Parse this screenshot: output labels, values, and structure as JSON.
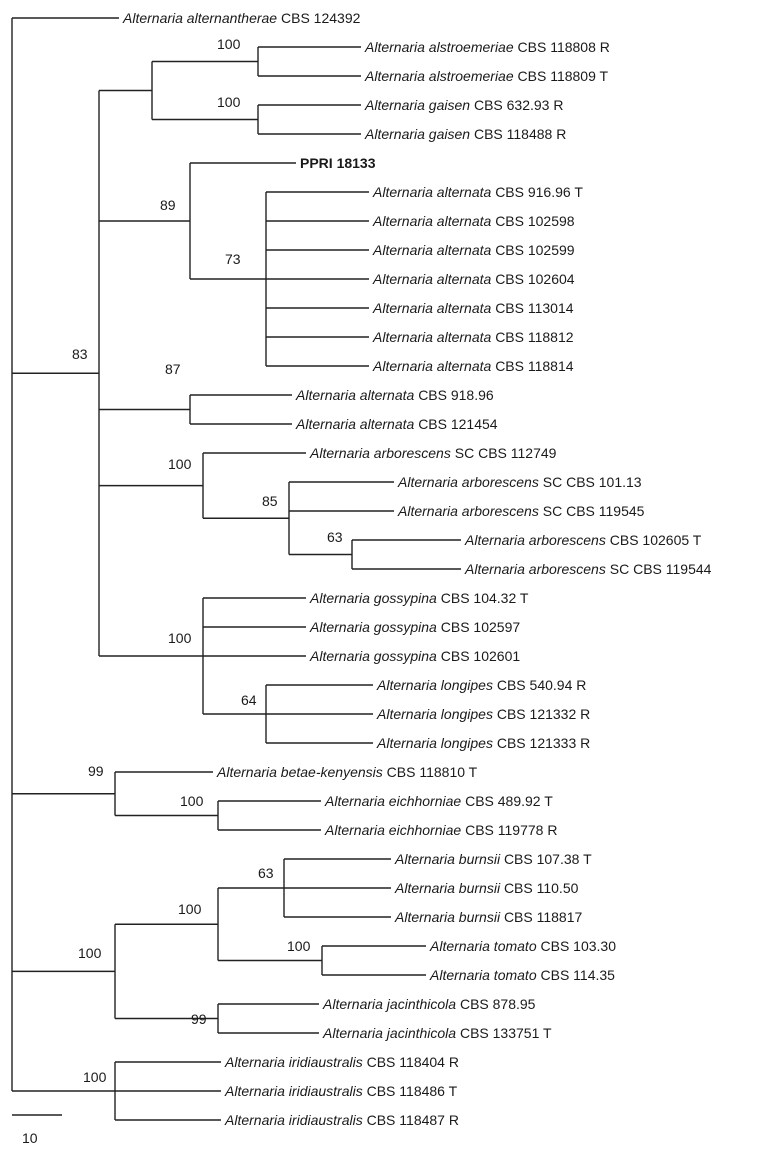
{
  "tree": {
    "genus": "Alternaria",
    "scale_label": "10",
    "taxa": [
      {
        "id": "alternantherae_124392",
        "name": "Alternaria alternantherae",
        "strain": "CBS 124392"
      },
      {
        "id": "alstroemeriae_118808",
        "name": "Alternaria alstroemeriae",
        "strain": "CBS 118808 R"
      },
      {
        "id": "alstroemeriae_118809",
        "name": "Alternaria alstroemeriae",
        "strain": "CBS 118809 T"
      },
      {
        "id": "gaisen_632_93",
        "name": "Alternaria gaisen",
        "strain": "CBS 632.93 R"
      },
      {
        "id": "gaisen_118488",
        "name": "Alternaria gaisen",
        "strain": "CBS 118488 R"
      },
      {
        "id": "ppri_18133",
        "name": "",
        "strain": "PPRI 18133",
        "bold": true
      },
      {
        "id": "alternata_916_96",
        "name": "Alternaria alternata",
        "strain": "CBS 916.96 T"
      },
      {
        "id": "alternata_102598",
        "name": "Alternaria alternata",
        "strain": "CBS 102598"
      },
      {
        "id": "alternata_102599",
        "name": "Alternaria alternata",
        "strain": "CBS 102599"
      },
      {
        "id": "alternata_102604",
        "name": "Alternaria alternata",
        "strain": "CBS 102604"
      },
      {
        "id": "alternata_113014",
        "name": "Alternaria alternata",
        "strain": "CBS 113014"
      },
      {
        "id": "alternata_118812",
        "name": "Alternaria alternata",
        "strain": "CBS 118812"
      },
      {
        "id": "alternata_118814",
        "name": "Alternaria alternata",
        "strain": "CBS 118814"
      },
      {
        "id": "alternata_918_96",
        "name": "Alternaria alternata",
        "strain": "CBS 918.96"
      },
      {
        "id": "alternata_121454",
        "name": "Alternaria alternata",
        "strain": "CBS 121454"
      },
      {
        "id": "arborescens_112749",
        "name": "Alternaria arborescens",
        "strain": "SC CBS 112749"
      },
      {
        "id": "arborescens_101_13",
        "name": "Alternaria arborescens",
        "strain": "SC CBS 101.13"
      },
      {
        "id": "arborescens_119545",
        "name": "Alternaria arborescens",
        "strain": "SC CBS 119545"
      },
      {
        "id": "arborescens_102605",
        "name": "Alternaria arborescens",
        "strain": "CBS 102605 T"
      },
      {
        "id": "arborescens_119544",
        "name": "Alternaria arborescens",
        "strain": "SC CBS 119544"
      },
      {
        "id": "gossypina_104_32",
        "name": "Alternaria gossypina",
        "strain": "CBS 104.32 T"
      },
      {
        "id": "gossypina_102597",
        "name": "Alternaria gossypina",
        "strain": "CBS 102597"
      },
      {
        "id": "gossypina_102601",
        "name": "Alternaria gossypina",
        "strain": "CBS 102601"
      },
      {
        "id": "longipes_540_94",
        "name": "Alternaria longipes",
        "strain": "CBS 540.94 R"
      },
      {
        "id": "longipes_121332",
        "name": "Alternaria longipes",
        "strain": "CBS 121332 R"
      },
      {
        "id": "longipes_121333",
        "name": "Alternaria longipes",
        "strain": "CBS 121333 R"
      },
      {
        "id": "betae_118810",
        "name": "Alternaria betae-kenyensis",
        "strain": "CBS 118810 T"
      },
      {
        "id": "eichhorniae_489_92",
        "name": "Alternaria eichhorniae",
        "strain": "CBS 489.92 T"
      },
      {
        "id": "eichhorniae_119778",
        "name": "Alternaria eichhorniae",
        "strain": "CBS 119778 R"
      },
      {
        "id": "burnsii_107_38",
        "name": "Alternaria burnsii",
        "strain": "CBS 107.38 T"
      },
      {
        "id": "burnsii_110_50",
        "name": "Alternaria burnsii",
        "strain": "CBS 110.50"
      },
      {
        "id": "burnsii_118817",
        "name": "Alternaria burnsii",
        "strain": "CBS 118817"
      },
      {
        "id": "tomato_103_30",
        "name": "Alternaria tomato",
        "strain": "CBS 103.30"
      },
      {
        "id": "tomato_114_35",
        "name": "Alternaria tomato",
        "strain": "CBS 114.35"
      },
      {
        "id": "jacinthicola_878_95",
        "name": "Alternaria jacinthicola",
        "strain": "CBS 878.95"
      },
      {
        "id": "jacinthicola_133751",
        "name": "Alternaria jacinthicola",
        "strain": "CBS 133751 T"
      },
      {
        "id": "iridiaustralis_118404",
        "name": "Alternaria iridiaustralis",
        "strain": "CBS 118404 R"
      },
      {
        "id": "iridiaustralis_118486",
        "name": "Alternaria iridiaustralis",
        "strain": "CBS 118486 T"
      },
      {
        "id": "iridiaustralis_118487",
        "name": "Alternaria iridiaustralis",
        "strain": "CBS 118487 R"
      }
    ],
    "support_values": [
      {
        "clade": "alstroemeriae",
        "value": "100"
      },
      {
        "clade": "gaisen",
        "value": "100"
      },
      {
        "clade": "alternata-ppri",
        "value": "89"
      },
      {
        "clade": "alternata-core",
        "value": "73"
      },
      {
        "clade": "section-alternaria",
        "value": "83"
      },
      {
        "clade": "alternata-pair",
        "value": "87"
      },
      {
        "clade": "arborescens",
        "value": "100"
      },
      {
        "clade": "arborescens-sub",
        "value": "85"
      },
      {
        "clade": "arborescens-pair",
        "value": "63"
      },
      {
        "clade": "gossypina-longipes",
        "value": "100"
      },
      {
        "clade": "longipes",
        "value": "64"
      },
      {
        "clade": "betae-eichhorniae",
        "value": "99"
      },
      {
        "clade": "eichhorniae",
        "value": "100"
      },
      {
        "clade": "burnsii",
        "value": "63"
      },
      {
        "clade": "burnsii-tomato",
        "value": "100"
      },
      {
        "clade": "tomato",
        "value": "100"
      },
      {
        "clade": "burnsii-jacinthicola",
        "value": "100"
      },
      {
        "clade": "jacinthicola",
        "value": "99"
      },
      {
        "clade": "iridiaustralis",
        "value": "100"
      }
    ]
  }
}
